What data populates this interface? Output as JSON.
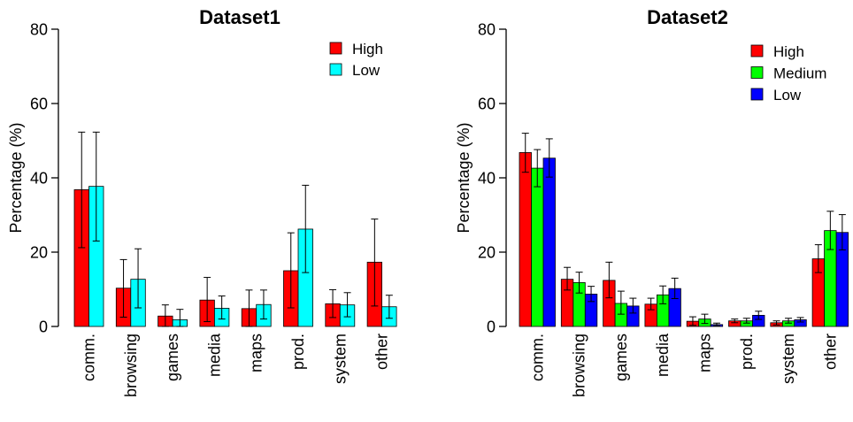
{
  "chart_data": [
    {
      "type": "bar",
      "title": "Dataset1",
      "xlabel": "",
      "ylabel": "Percentage (%)",
      "ylim": [
        0,
        80
      ],
      "yticks": [
        0,
        20,
        40,
        60,
        80
      ],
      "categories": [
        "comm.",
        "browsing",
        "games",
        "media",
        "maps",
        "prod.",
        "system",
        "other"
      ],
      "legend_position": "top-right",
      "error_bars": true,
      "series": [
        {
          "name": "High",
          "color": "#ff0000",
          "values": [
            36.8,
            10.3,
            2.8,
            7.1,
            4.8,
            15.0,
            6.1,
            17.3
          ],
          "err_low": [
            21.2,
            2.5,
            0.0,
            1.3,
            0.0,
            5.0,
            2.4,
            5.5
          ],
          "err_high": [
            52.3,
            18.0,
            5.8,
            13.2,
            9.8,
            25.2,
            9.9,
            28.9
          ]
        },
        {
          "name": "Low",
          "color": "#00ffff",
          "values": [
            37.7,
            12.7,
            1.8,
            4.9,
            5.9,
            26.2,
            5.8,
            5.3
          ],
          "err_low": [
            23.0,
            5.0,
            0.0,
            2.0,
            2.0,
            14.5,
            2.6,
            2.2
          ],
          "err_high": [
            52.3,
            20.9,
            4.6,
            8.2,
            9.8,
            38.0,
            9.1,
            8.4
          ]
        }
      ]
    },
    {
      "type": "bar",
      "title": "Dataset2",
      "xlabel": "",
      "ylabel": "Percentage (%)",
      "ylim": [
        0,
        80
      ],
      "yticks": [
        0,
        20,
        40,
        60,
        80
      ],
      "categories": [
        "comm.",
        "browsing",
        "games",
        "media",
        "maps",
        "prod.",
        "system",
        "other"
      ],
      "legend_position": "top-right",
      "error_bars": true,
      "series": [
        {
          "name": "High",
          "color": "#ff0000",
          "values": [
            46.8,
            12.7,
            12.4,
            6.0,
            1.4,
            1.5,
            1.0,
            18.2
          ],
          "err_low": [
            41.5,
            9.8,
            7.7,
            4.5,
            0.3,
            1.0,
            0.4,
            14.5
          ],
          "err_high": [
            52.0,
            15.9,
            17.3,
            7.6,
            2.6,
            2.0,
            1.5,
            22.0
          ]
        },
        {
          "name": "Medium",
          "color": "#00ff00",
          "values": [
            42.6,
            11.8,
            6.2,
            8.5,
            2.0,
            1.5,
            1.5,
            25.8
          ],
          "err_low": [
            37.6,
            9.0,
            3.3,
            6.1,
            0.8,
            0.9,
            0.9,
            20.7
          ],
          "err_high": [
            47.6,
            14.6,
            9.5,
            10.9,
            3.3,
            2.2,
            2.2,
            31.0
          ]
        },
        {
          "name": "Low",
          "color": "#0000ff",
          "values": [
            45.3,
            8.7,
            5.5,
            10.2,
            0.5,
            3.0,
            1.8,
            25.3
          ],
          "err_low": [
            40.2,
            6.7,
            3.6,
            7.5,
            0.2,
            1.9,
            1.2,
            20.6
          ],
          "err_high": [
            50.5,
            10.8,
            7.6,
            13.0,
            0.9,
            4.1,
            2.4,
            30.1
          ]
        }
      ]
    }
  ]
}
